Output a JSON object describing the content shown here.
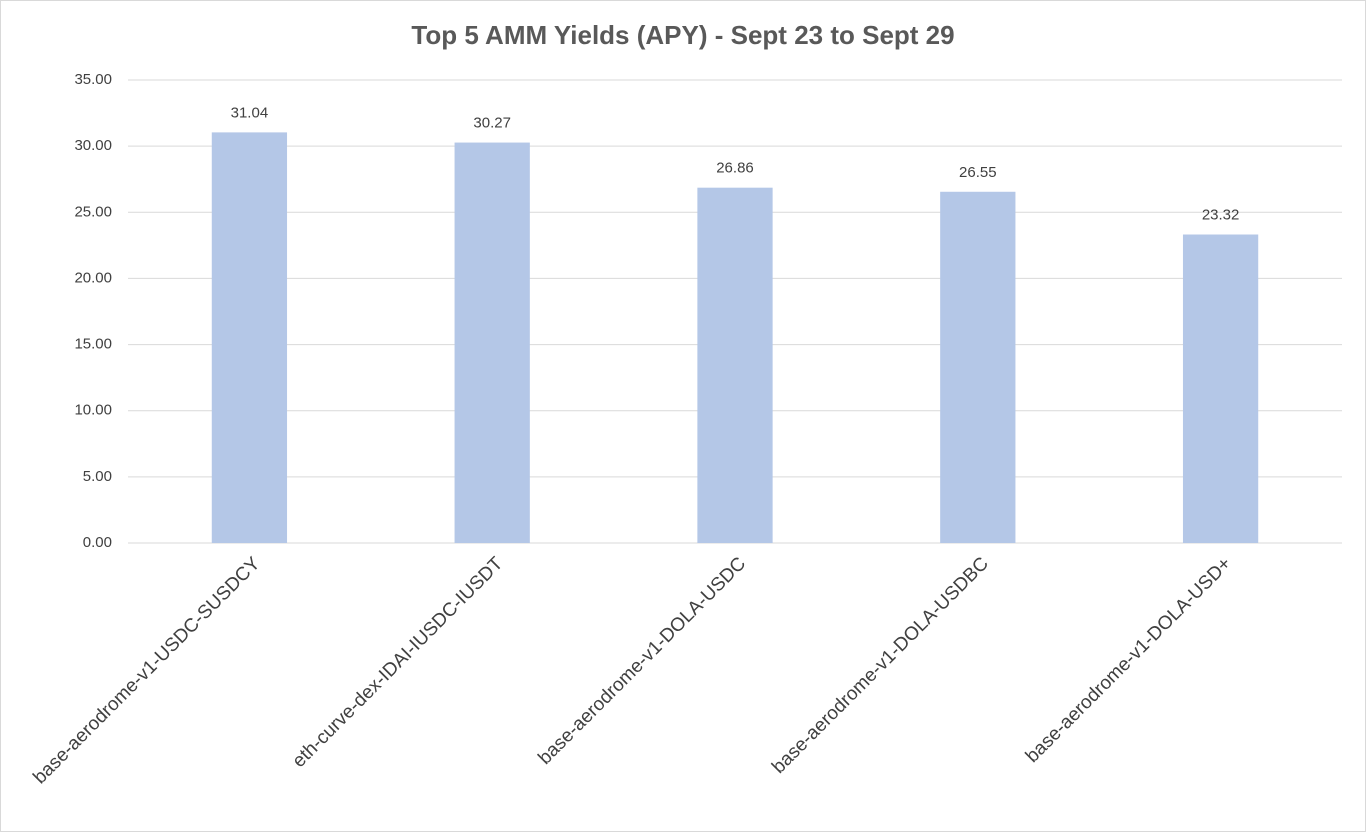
{
  "chart_data": {
    "type": "bar",
    "title": "Top 5 AMM Yields (APY) - Sept 23 to Sept 29",
    "categories": [
      "base-aerodrome-v1-USDC-SUSDCY",
      "eth-curve-dex-IDAI-IUSDC-IUSDT",
      "base-aerodrome-v1-DOLA-USDC",
      "base-aerodrome-v1-DOLA-USDBC",
      "base-aerodrome-v1-DOLA-USD+"
    ],
    "values": [
      31.04,
      30.27,
      26.86,
      26.55,
      23.32
    ],
    "color": "#b4c7e7",
    "ylim": [
      0,
      35
    ],
    "yticks": [
      {
        "value": 0,
        "label": "0.00"
      },
      {
        "value": 5,
        "label": "5.00"
      },
      {
        "value": 10,
        "label": "10.00"
      },
      {
        "value": 15,
        "label": "15.00"
      },
      {
        "value": 20,
        "label": "20.00"
      },
      {
        "value": 25,
        "label": "25.00"
      },
      {
        "value": 30,
        "label": "30.00"
      },
      {
        "value": 35,
        "label": "35.00"
      }
    ],
    "grid": true
  }
}
